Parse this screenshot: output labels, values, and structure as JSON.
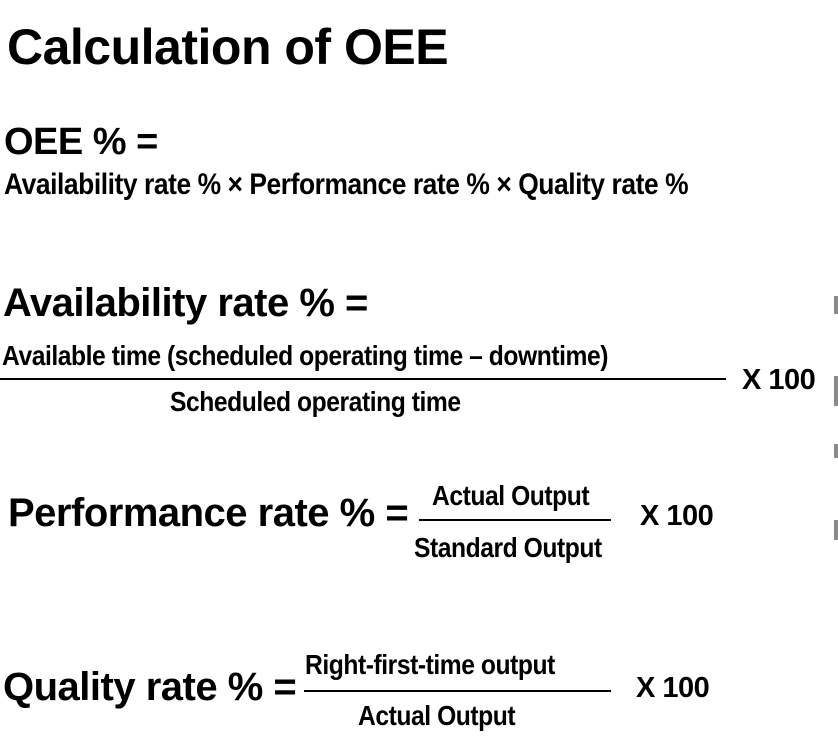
{
  "title": "Calculation of OEE",
  "oee": {
    "label": "OEE % =",
    "formula": "Availability rate % × Performance rate % × Quality rate %"
  },
  "availability": {
    "label": "Availability rate % =",
    "numerator": "Available time (scheduled operating time – downtime)",
    "denominator": "Scheduled operating time",
    "multiplier": "X 100"
  },
  "performance": {
    "label": "Performance rate % =",
    "numerator": "Actual Output",
    "denominator": "Standard Output",
    "multiplier": "X 100"
  },
  "quality": {
    "label": "Quality rate % =",
    "numerator": "Right-first-time output",
    "denominator": "Actual Output",
    "multiplier": "X 100"
  }
}
